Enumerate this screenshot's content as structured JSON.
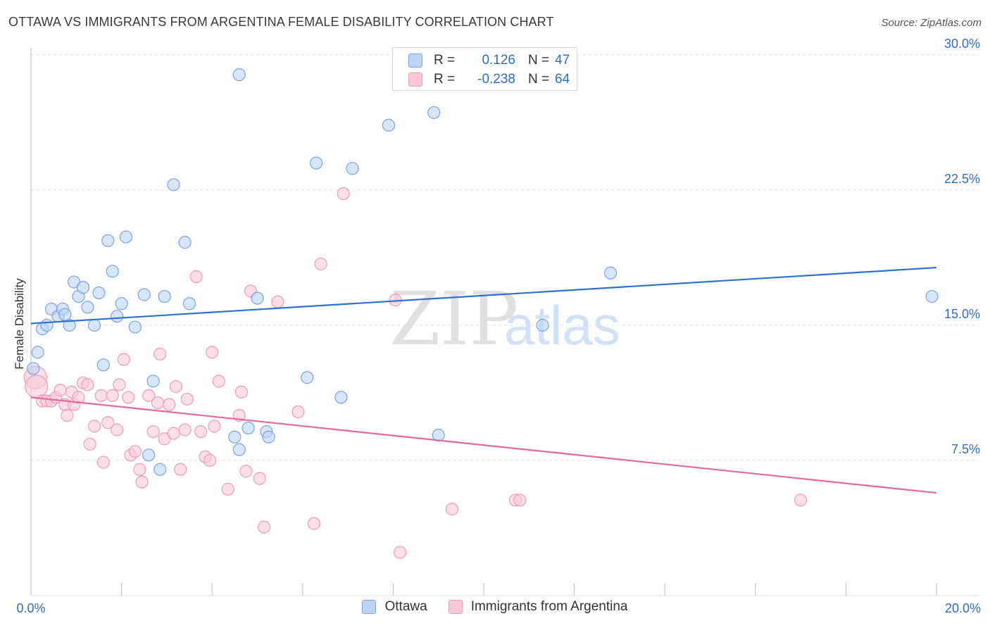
{
  "header": {
    "title": "OTTAWA VS IMMIGRANTS FROM ARGENTINA FEMALE DISABILITY CORRELATION CHART",
    "source": "Source: ZipAtlas.com"
  },
  "legend": {
    "r_label": "R =",
    "n_label": "N =",
    "rows": [
      {
        "r": "0.126",
        "n": "47"
      },
      {
        "r": "-0.238",
        "n": "64"
      }
    ]
  },
  "watermark": {
    "part1": "ZIP",
    "part2": "atlas"
  },
  "colors": {
    "ottawa_fill": "#bcd3f5",
    "ottawa_stroke": "#7aa3e0",
    "ottawa_line": "#2b73cf",
    "argentina_fill": "#f9c8d8",
    "argentina_stroke": "#ee9cb7",
    "argentina_line": "#e5699a",
    "tick_label": "#2f6cc8"
  },
  "chart_data": {
    "type": "scatter",
    "title": "OTTAWA VS IMMIGRANTS FROM ARGENTINA FEMALE DISABILITY CORRELATION CHART",
    "xlabel": "",
    "ylabel": "Female Disability",
    "xlim": [
      0,
      20
    ],
    "ylim": [
      0,
      30
    ],
    "x_tick_labels": [
      "0.0%",
      "20.0%"
    ],
    "y_ticks": [
      7.5,
      15.0,
      22.5,
      30.0
    ],
    "y_tick_labels": [
      "7.5%",
      "15.0%",
      "22.5%",
      "30.0%"
    ],
    "grid": true,
    "series": [
      {
        "name": "Ottawa",
        "r": 0.126,
        "n": 47,
        "trend": {
          "x": [
            0,
            20
          ],
          "y": [
            15.1,
            18.2
          ]
        },
        "points": [
          [
            0.05,
            12.6
          ],
          [
            0.15,
            13.5
          ],
          [
            0.25,
            14.8
          ],
          [
            0.35,
            15.0
          ],
          [
            0.45,
            15.9
          ],
          [
            0.6,
            15.5
          ],
          [
            0.7,
            15.9
          ],
          [
            0.75,
            15.6
          ],
          [
            0.85,
            15.0
          ],
          [
            0.95,
            17.4
          ],
          [
            1.05,
            16.6
          ],
          [
            1.15,
            17.1
          ],
          [
            1.25,
            16.0
          ],
          [
            1.4,
            15.0
          ],
          [
            1.5,
            16.8
          ],
          [
            1.6,
            12.8
          ],
          [
            1.7,
            19.7
          ],
          [
            1.8,
            18.0
          ],
          [
            1.9,
            15.5
          ],
          [
            2.0,
            16.2
          ],
          [
            2.1,
            19.9
          ],
          [
            2.3,
            14.9
          ],
          [
            2.5,
            16.7
          ],
          [
            2.6,
            7.8
          ],
          [
            2.7,
            11.9
          ],
          [
            2.85,
            7.0
          ],
          [
            2.95,
            16.6
          ],
          [
            3.15,
            22.8
          ],
          [
            3.4,
            19.6
          ],
          [
            3.5,
            16.2
          ],
          [
            4.6,
            28.9
          ],
          [
            4.5,
            8.8
          ],
          [
            4.6,
            8.1
          ],
          [
            4.8,
            9.3
          ],
          [
            5.0,
            16.5
          ],
          [
            5.2,
            9.1
          ],
          [
            5.25,
            8.8
          ],
          [
            6.1,
            12.1
          ],
          [
            6.3,
            24.0
          ],
          [
            6.85,
            11.0
          ],
          [
            7.1,
            23.7
          ],
          [
            7.9,
            26.1
          ],
          [
            8.9,
            26.8
          ],
          [
            9.0,
            8.9
          ],
          [
            11.3,
            15.0
          ],
          [
            12.8,
            17.9
          ],
          [
            19.9,
            16.6
          ]
        ]
      },
      {
        "name": "Immigrants from Argentina",
        "r": -0.238,
        "n": 64,
        "trend": {
          "x": [
            0,
            20
          ],
          "y": [
            11.0,
            5.7
          ]
        },
        "points": [
          [
            0.1,
            12.1
          ],
          [
            0.12,
            11.6
          ],
          [
            0.25,
            10.8
          ],
          [
            0.35,
            10.8
          ],
          [
            0.45,
            10.8
          ],
          [
            0.55,
            11.0
          ],
          [
            0.65,
            11.4
          ],
          [
            0.75,
            10.6
          ],
          [
            0.8,
            10.0
          ],
          [
            0.9,
            11.3
          ],
          [
            0.95,
            10.6
          ],
          [
            1.05,
            11.0
          ],
          [
            1.15,
            11.8
          ],
          [
            1.25,
            11.7
          ],
          [
            1.3,
            8.4
          ],
          [
            1.4,
            9.4
          ],
          [
            1.55,
            11.1
          ],
          [
            1.6,
            7.4
          ],
          [
            1.7,
            9.6
          ],
          [
            1.8,
            11.1
          ],
          [
            1.9,
            9.2
          ],
          [
            1.95,
            11.7
          ],
          [
            2.05,
            13.1
          ],
          [
            2.15,
            11.0
          ],
          [
            2.2,
            7.8
          ],
          [
            2.3,
            8.0
          ],
          [
            2.4,
            7.0
          ],
          [
            2.45,
            6.3
          ],
          [
            2.6,
            11.1
          ],
          [
            2.7,
            9.1
          ],
          [
            2.8,
            10.7
          ],
          [
            2.85,
            13.4
          ],
          [
            2.95,
            8.7
          ],
          [
            3.05,
            10.6
          ],
          [
            3.15,
            9.0
          ],
          [
            3.2,
            11.6
          ],
          [
            3.3,
            7.0
          ],
          [
            3.4,
            9.2
          ],
          [
            3.45,
            10.9
          ],
          [
            3.65,
            17.7
          ],
          [
            3.75,
            9.1
          ],
          [
            3.85,
            7.7
          ],
          [
            3.95,
            7.5
          ],
          [
            4.0,
            13.5
          ],
          [
            4.05,
            9.4
          ],
          [
            4.15,
            11.9
          ],
          [
            4.35,
            5.9
          ],
          [
            4.6,
            10.0
          ],
          [
            4.65,
            11.3
          ],
          [
            4.75,
            6.9
          ],
          [
            4.85,
            16.9
          ],
          [
            5.05,
            6.5
          ],
          [
            5.15,
            3.8
          ],
          [
            5.45,
            16.3
          ],
          [
            5.9,
            10.2
          ],
          [
            6.25,
            4.0
          ],
          [
            6.4,
            18.4
          ],
          [
            6.9,
            22.3
          ],
          [
            8.05,
            16.4
          ],
          [
            8.15,
            2.4
          ],
          [
            9.3,
            4.8
          ],
          [
            10.7,
            5.3
          ],
          [
            10.8,
            5.3
          ],
          [
            17.0,
            5.3
          ]
        ]
      }
    ]
  },
  "bottom_legend": [
    "Ottawa",
    "Immigrants from Argentina"
  ]
}
